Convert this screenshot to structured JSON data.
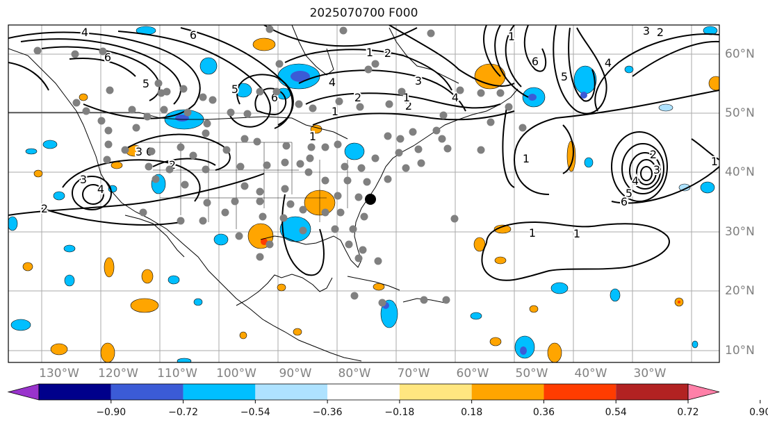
{
  "title": "2025070700 F000",
  "lon_labels": [
    "130°W",
    "120°W",
    "110°W",
    "100°W",
    "90°W",
    "80°W",
    "70°W",
    "60°W",
    "50°W",
    "40°W",
    "30°W"
  ],
  "lat_labels": [
    "60°N",
    "50°N",
    "40°N",
    "30°N",
    "20°N",
    "10°N"
  ],
  "colorbar": {
    "ticks": [
      "−0.90",
      "−0.72",
      "−0.54",
      "−0.36",
      "−0.18",
      "0.18",
      "0.36",
      "0.54",
      "0.72",
      "0.90"
    ],
    "colors": [
      "#9933cc",
      "#00008b",
      "#3b5bd6",
      "#00bfff",
      "#aee2ff",
      "#ffffff",
      "#ffe680",
      "#ffa500",
      "#ff3c00",
      "#b22222",
      "#ff80a8"
    ]
  },
  "contour_labels": [
    "4",
    "6",
    "6",
    "5",
    "6",
    "5",
    "4",
    "3",
    "2",
    "1",
    "2",
    "6",
    "4",
    "3",
    "2",
    "1",
    "1",
    "1",
    "2",
    "3",
    "4",
    "5",
    "6",
    "1",
    "2",
    "3",
    "4",
    "5",
    "6",
    "1",
    "1",
    "2",
    "3",
    "4",
    "1",
    "2",
    "1"
  ],
  "colors": {
    "contour": "#000000",
    "coast": "#000000",
    "station": "#808080",
    "marker": "#000000",
    "grid": "#aaaaaa"
  }
}
